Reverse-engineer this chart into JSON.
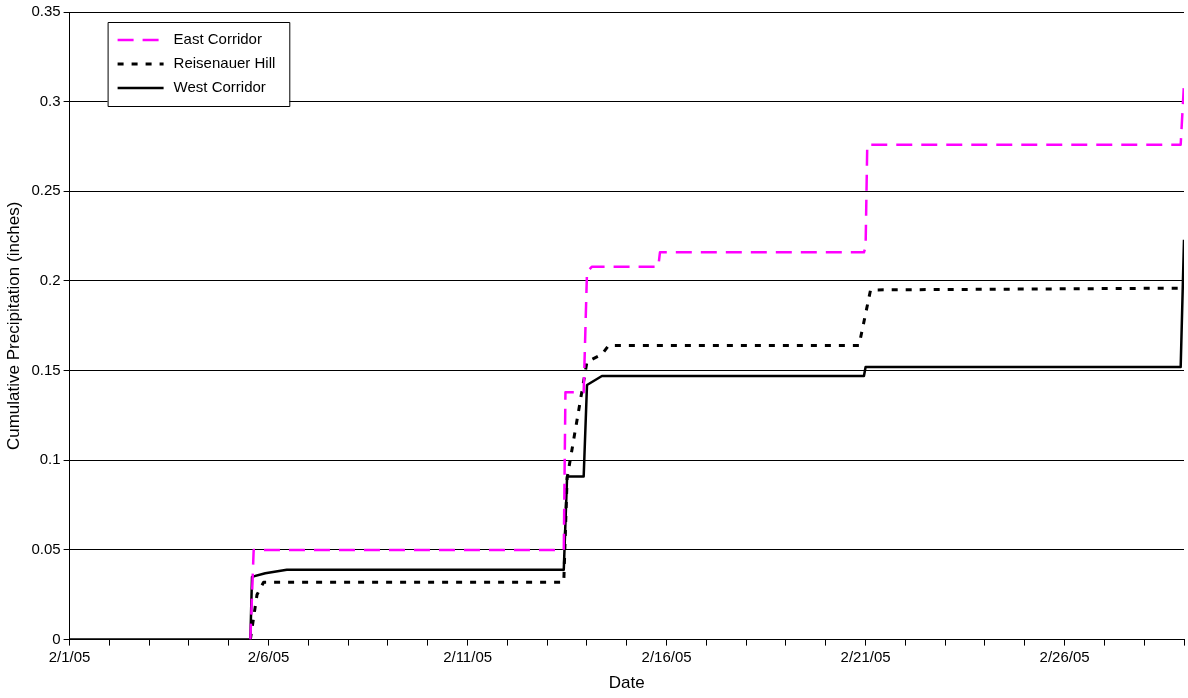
{
  "chart_data": {
    "type": "line",
    "xlabel": "Date",
    "ylabel": "Cumulative Precipitation (inches)",
    "xlim": [
      "--02-01",
      "--03-01"
    ],
    "xticks": [
      {
        "value": "--02-01",
        "label": "2/1/05"
      },
      {
        "value": "--02-02",
        "label": null
      },
      {
        "value": "--02-03",
        "label": null
      },
      {
        "value": "--02-04",
        "label": null
      },
      {
        "value": "--02-05",
        "label": null
      },
      {
        "value": "--02-06",
        "label": "2/6/05"
      },
      {
        "value": "--02-07",
        "label": null
      },
      {
        "value": "--02-08",
        "label": null
      },
      {
        "value": "--02-09",
        "label": null
      },
      {
        "value": "--02-10",
        "label": null
      },
      {
        "value": "--02-11",
        "label": "2/11/05"
      },
      {
        "value": "--02-12",
        "label": null
      },
      {
        "value": "--02-13",
        "label": null
      },
      {
        "value": "--02-14",
        "label": null
      },
      {
        "value": "--02-15",
        "label": null
      },
      {
        "value": "--02-16",
        "label": "2/16/05"
      },
      {
        "value": "--02-17",
        "label": null
      },
      {
        "value": "--02-18",
        "label": null
      },
      {
        "value": "--02-19",
        "label": null
      },
      {
        "value": "--02-20",
        "label": null
      },
      {
        "value": "--02-21",
        "label": "2/21/05"
      },
      {
        "value": "--02-22",
        "label": null
      },
      {
        "value": "--02-23",
        "label": null
      },
      {
        "value": "--02-24",
        "label": null
      },
      {
        "value": "--02-25",
        "label": null
      },
      {
        "value": "--02-26",
        "label": "2/26/05"
      },
      {
        "value": "--02-27",
        "label": null
      },
      {
        "value": "--02-28",
        "label": null
      },
      {
        "value": "--03-01",
        "label": null
      }
    ],
    "ylim": [
      0,
      0.35
    ],
    "yticks": [
      0,
      0.05,
      0.1,
      0.15,
      0.2,
      0.25,
      0.3,
      0.35
    ],
    "grid": "y",
    "legend": "top left",
    "marker": "none",
    "series": [
      {
        "name": "East Corridor",
        "color": "#ff00ff",
        "line_style": "dashed",
        "x": [
          "--02-05T13:00",
          "--02-05T15:00",
          "--02-13T10:00",
          "--02-13T11:00",
          "--02-13T22:00",
          "--02-14T00:00",
          "--02-14T03:00",
          "--02-15T19:00",
          "--02-15T20:00",
          "--02-20T23:00",
          "--02-21T00:00",
          "--02-21T01:00",
          "--02-28T22:00",
          "--03-01T00:00"
        ],
        "values": [
          0,
          0.05,
          0.05,
          0.138,
          0.138,
          0.205,
          0.208,
          0.208,
          0.216,
          0.216,
          0.219,
          0.276,
          0.276,
          0.31
        ]
      },
      {
        "name": "Reisenauer Hill",
        "color": "#000000",
        "line_style": "dotted",
        "x": [
          "--02-05T13:00",
          "--02-05T17:00",
          "--02-05T21:00",
          "--02-13T10:00",
          "--02-13T12:00",
          "--02-14T00:00",
          "--02-14T09:00",
          "--02-14T13:00",
          "--02-20T20:00",
          "--02-21T03:00",
          "--03-01T00:00"
        ],
        "values": [
          0,
          0.025,
          0.032,
          0.032,
          0.09,
          0.155,
          0.159,
          0.164,
          0.164,
          0.195,
          0.196
        ]
      },
      {
        "name": "West Corridor",
        "color": "#000000",
        "line_style": "solid",
        "x": [
          "--02-01T00:00",
          "--02-05T13:00",
          "--02-05T14:00",
          "--02-05T22:00",
          "--02-06T11:00",
          "--02-13T10:00",
          "--02-13T12:00",
          "--02-13T22:00",
          "--02-14T00:00",
          "--02-14T09:00",
          "--02-20T23:00",
          "--02-21T00:00",
          "--02-28T22:00",
          "--03-01T00:00"
        ],
        "values": [
          0,
          0,
          0.035,
          0.037,
          0.039,
          0.039,
          0.091,
          0.091,
          0.142,
          0.147,
          0.147,
          0.152,
          0.152,
          0.223
        ]
      }
    ]
  }
}
